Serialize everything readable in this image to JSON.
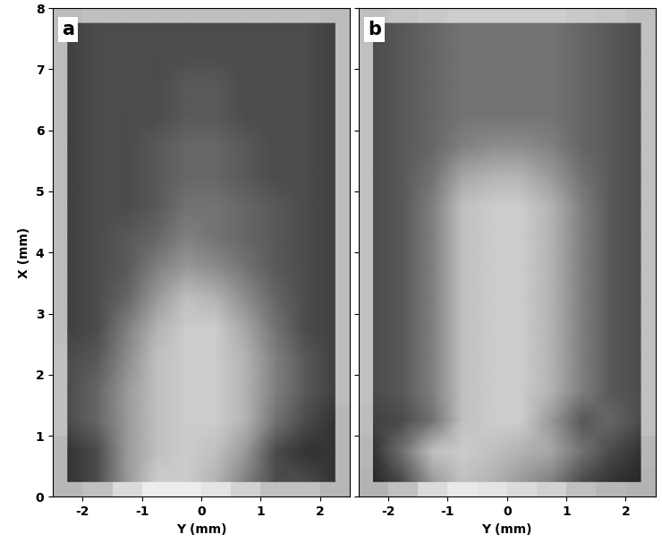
{
  "chart_data": [
    {
      "type": "heatmap",
      "title": "a",
      "xlabel": "Y (mm)",
      "ylabel": "X (mm)",
      "xlim": [
        -2.5,
        2.5
      ],
      "ylim": [
        0,
        8
      ],
      "xticks": [
        -2,
        -1,
        0,
        1,
        2
      ],
      "yticks": [
        0,
        1,
        2,
        3,
        4,
        5,
        6,
        7,
        8
      ],
      "color_range": [
        0,
        1
      ],
      "cells": [
        [
          0.2,
          0.3,
          0.6,
          0.8,
          0.8,
          0.7,
          0.5,
          0.3,
          0.3,
          0.2
        ],
        [
          0.2,
          0.3,
          0.6,
          0.75,
          0.8,
          0.75,
          0.6,
          0.3,
          0.2,
          0.2
        ],
        [
          0.3,
          0.4,
          0.6,
          0.75,
          0.8,
          0.8,
          0.7,
          0.45,
          0.3,
          0.2
        ],
        [
          0.3,
          0.4,
          0.6,
          0.75,
          0.8,
          0.8,
          0.7,
          0.5,
          0.35,
          0.25
        ],
        [
          0.3,
          0.35,
          0.55,
          0.75,
          0.8,
          0.8,
          0.7,
          0.5,
          0.35,
          0.25
        ],
        [
          0.25,
          0.3,
          0.5,
          0.7,
          0.8,
          0.8,
          0.65,
          0.45,
          0.3,
          0.25
        ],
        [
          0.25,
          0.3,
          0.4,
          0.6,
          0.75,
          0.7,
          0.55,
          0.4,
          0.3,
          0.25
        ],
        [
          0.25,
          0.3,
          0.35,
          0.5,
          0.6,
          0.55,
          0.45,
          0.35,
          0.3,
          0.25
        ],
        [
          0.25,
          0.3,
          0.35,
          0.4,
          0.5,
          0.45,
          0.4,
          0.35,
          0.3,
          0.25
        ],
        [
          0.25,
          0.3,
          0.3,
          0.35,
          0.45,
          0.45,
          0.4,
          0.35,
          0.3,
          0.25
        ],
        [
          0.25,
          0.3,
          0.3,
          0.35,
          0.4,
          0.4,
          0.35,
          0.3,
          0.3,
          0.25
        ],
        [
          0.25,
          0.3,
          0.3,
          0.35,
          0.4,
          0.4,
          0.35,
          0.3,
          0.3,
          0.25
        ],
        [
          0.25,
          0.3,
          0.3,
          0.3,
          0.35,
          0.35,
          0.3,
          0.3,
          0.3,
          0.25
        ],
        [
          0.25,
          0.3,
          0.3,
          0.3,
          0.35,
          0.35,
          0.3,
          0.3,
          0.3,
          0.25
        ],
        [
          0.25,
          0.3,
          0.3,
          0.3,
          0.3,
          0.3,
          0.3,
          0.3,
          0.3,
          0.25
        ],
        [
          0.25,
          0.3,
          0.3,
          0.3,
          0.3,
          0.3,
          0.3,
          0.3,
          0.3,
          0.25
        ]
      ]
    },
    {
      "type": "heatmap",
      "title": "b",
      "xlabel": "Y (mm)",
      "xlim": [
        -2.5,
        2.5
      ],
      "ylim": [
        0,
        8
      ],
      "xticks": [
        -2,
        -1,
        0,
        1,
        2
      ],
      "yticks": [
        0,
        1,
        2,
        3,
        4,
        5,
        6,
        7,
        8
      ],
      "tick_labels": "x",
      "color_range": [
        0,
        1
      ],
      "cells": [
        [
          0.15,
          0.3,
          0.6,
          0.75,
          0.7,
          0.6,
          0.5,
          0.3,
          0.2,
          0.15
        ],
        [
          0.2,
          0.45,
          0.75,
          0.8,
          0.75,
          0.7,
          0.65,
          0.45,
          0.3,
          0.2
        ],
        [
          0.25,
          0.3,
          0.45,
          0.75,
          0.8,
          0.8,
          0.6,
          0.35,
          0.4,
          0.3
        ],
        [
          0.3,
          0.35,
          0.5,
          0.75,
          0.8,
          0.8,
          0.7,
          0.5,
          0.35,
          0.3
        ],
        [
          0.3,
          0.35,
          0.5,
          0.75,
          0.8,
          0.8,
          0.7,
          0.5,
          0.35,
          0.3
        ],
        [
          0.3,
          0.35,
          0.5,
          0.75,
          0.8,
          0.8,
          0.7,
          0.5,
          0.35,
          0.3
        ],
        [
          0.3,
          0.35,
          0.5,
          0.75,
          0.8,
          0.8,
          0.7,
          0.5,
          0.35,
          0.3
        ],
        [
          0.3,
          0.35,
          0.5,
          0.75,
          0.8,
          0.8,
          0.7,
          0.5,
          0.35,
          0.3
        ],
        [
          0.3,
          0.35,
          0.5,
          0.75,
          0.8,
          0.8,
          0.7,
          0.5,
          0.35,
          0.3
        ],
        [
          0.3,
          0.35,
          0.5,
          0.75,
          0.8,
          0.8,
          0.7,
          0.5,
          0.35,
          0.3
        ],
        [
          0.3,
          0.35,
          0.45,
          0.65,
          0.7,
          0.7,
          0.6,
          0.45,
          0.35,
          0.3
        ],
        [
          0.3,
          0.35,
          0.4,
          0.5,
          0.55,
          0.55,
          0.5,
          0.4,
          0.35,
          0.3
        ],
        [
          0.3,
          0.35,
          0.4,
          0.45,
          0.45,
          0.45,
          0.45,
          0.4,
          0.35,
          0.3
        ],
        [
          0.3,
          0.35,
          0.4,
          0.45,
          0.45,
          0.45,
          0.45,
          0.4,
          0.35,
          0.3
        ],
        [
          0.3,
          0.35,
          0.4,
          0.45,
          0.45,
          0.45,
          0.45,
          0.4,
          0.35,
          0.3
        ],
        [
          0.3,
          0.35,
          0.4,
          0.45,
          0.45,
          0.45,
          0.45,
          0.4,
          0.35,
          0.3
        ]
      ]
    }
  ]
}
